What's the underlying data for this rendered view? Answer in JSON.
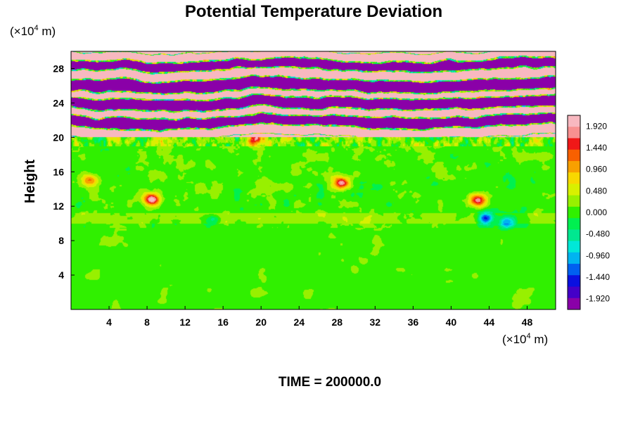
{
  "chart_data": {
    "type": "heatmap",
    "title": "Potential Temperature Deviation",
    "ylabel": "Height",
    "xlabel": "",
    "x_unit": {
      "prefix": "(×10",
      "exp": "4",
      "suffix": " m)"
    },
    "y_unit": {
      "prefix": "(×10",
      "exp": "4",
      "suffix": " m)"
    },
    "xlim": [
      0,
      51
    ],
    "ylim": [
      0,
      30
    ],
    "xticks": [
      "4",
      "8",
      "12",
      "16",
      "20",
      "24",
      "28",
      "32",
      "36",
      "40",
      "44",
      "48"
    ],
    "xtick_values": [
      4,
      8,
      12,
      16,
      20,
      24,
      28,
      32,
      36,
      40,
      44,
      48
    ],
    "yticks": [
      "4",
      "8",
      "12",
      "16",
      "20",
      "24",
      "28"
    ],
    "ytick_values": [
      4,
      8,
      12,
      16,
      20,
      24,
      28
    ],
    "colorbar": {
      "range": [
        -2.16,
        2.16
      ],
      "tick_labels": [
        "1.920",
        "1.440",
        "0.960",
        "0.480",
        "0.000",
        "-0.480",
        "-0.960",
        "-1.440",
        "-1.920"
      ],
      "tick_values": [
        1.92,
        1.44,
        0.96,
        0.48,
        0.0,
        -0.48,
        -0.96,
        -1.44,
        -1.92
      ]
    },
    "field": {
      "lower_background": 0.05,
      "stratosphere_base_height": 20,
      "stratosphere_bands": [
        {
          "y0": 20.0,
          "y1": 21.2,
          "value": 2.1
        },
        {
          "y0": 21.2,
          "y1": 22.4,
          "value": -2.1
        },
        {
          "y0": 22.4,
          "y1": 23.3,
          "value": 2.1
        },
        {
          "y0": 23.3,
          "y1": 24.6,
          "value": -2.1
        },
        {
          "y0": 24.6,
          "y1": 25.4,
          "value": 2.1
        },
        {
          "y0": 25.4,
          "y1": 26.8,
          "value": -2.1
        },
        {
          "y0": 26.8,
          "y1": 27.9,
          "value": 2.1
        },
        {
          "y0": 27.9,
          "y1": 29.0,
          "value": -2.1
        },
        {
          "y0": 29.0,
          "y1": 30.0,
          "value": 2.1
        }
      ],
      "warm_cells": [
        {
          "x": 2.0,
          "y": 15.0,
          "value": 1.2
        },
        {
          "x": 8.5,
          "y": 12.8,
          "value": 1.9
        },
        {
          "x": 19.5,
          "y": 19.7,
          "value": 1.5
        },
        {
          "x": 28.5,
          "y": 14.7,
          "value": 1.9
        },
        {
          "x": 42.8,
          "y": 12.7,
          "value": 1.9
        }
      ],
      "cool_cells": [
        {
          "x": 43.6,
          "y": 10.6,
          "value": -1.6
        },
        {
          "x": 45.8,
          "y": 10.1,
          "value": -1.3
        },
        {
          "x": 14.8,
          "y": 10.4,
          "value": -0.7
        }
      ]
    },
    "annotation": "TIME = 200000.0"
  },
  "colors": {
    "scale": [
      "#8a00a8",
      "#4400c8",
      "#0a10e0",
      "#0060f0",
      "#00b4f0",
      "#00e8d8",
      "#00e890",
      "#00f050",
      "#30f000",
      "#98f000",
      "#d8f000",
      "#f8d800",
      "#f8a000",
      "#f86000",
      "#f01818",
      "#f89090",
      "#f8b8c0"
    ],
    "frame": "#000000"
  }
}
